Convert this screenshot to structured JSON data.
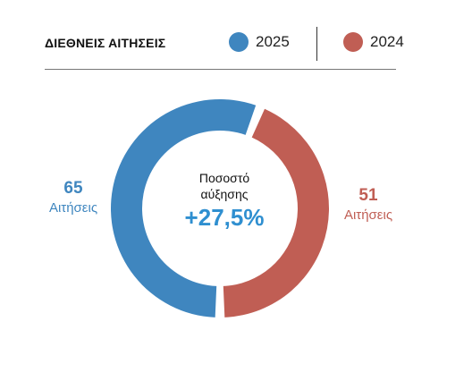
{
  "header": {
    "title": "ΔΙΕΘΝΕΙΣ ΑΙΤΗΣΕΙΣ"
  },
  "legend": [
    {
      "label": "2025",
      "color": "#3f86bf"
    },
    {
      "label": "2024",
      "color": "#c05e54"
    }
  ],
  "center": {
    "caption_line1": "Ποσοστό",
    "caption_line2": "αύξησης",
    "value": "+27,5%"
  },
  "labels": {
    "left": {
      "value": "65",
      "unit": "Αιτήσεις"
    },
    "right": {
      "value": "51",
      "unit": "Αιτήσεις"
    }
  },
  "chart_data": {
    "type": "pie",
    "title": "ΔΙΕΘΝΕΙΣ ΑΙΤΗΣΕΙΣ",
    "categories": [
      "2025",
      "2024"
    ],
    "values": [
      65,
      51
    ],
    "unit": "Αιτήσεις",
    "colors": [
      "#3f86bf",
      "#c05e54"
    ],
    "legend": "top-right",
    "annotation": "+27,5%"
  }
}
